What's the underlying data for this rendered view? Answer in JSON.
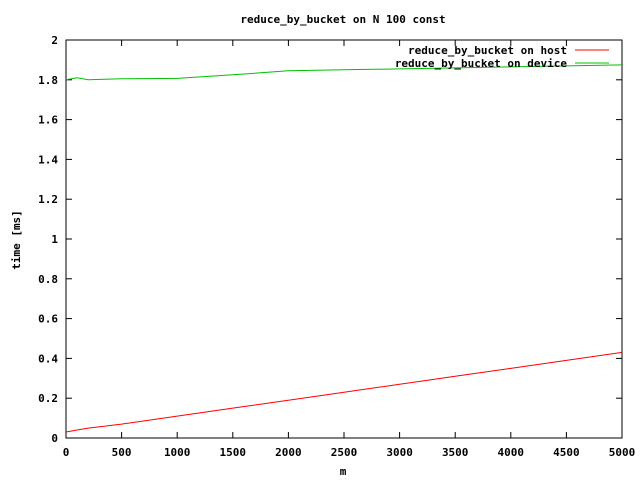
{
  "chart_data": {
    "type": "line",
    "title": "reduce_by_bucket on N 100 const",
    "xlabel": "m",
    "ylabel": "time [ms]",
    "xlim": [
      0,
      5000
    ],
    "ylim": [
      0,
      2
    ],
    "xticks": [
      0,
      500,
      1000,
      1500,
      2000,
      2500,
      3000,
      3500,
      4000,
      4500,
      5000
    ],
    "yticks": [
      0,
      0.2,
      0.4,
      0.6,
      0.8,
      1,
      1.2,
      1.4,
      1.6,
      1.8,
      2
    ],
    "xtick_labels": [
      "0",
      "500",
      "1000",
      "1500",
      "2000",
      "2500",
      "3000",
      "3500",
      "4000",
      "4500",
      "5000"
    ],
    "ytick_labels": [
      "0",
      "0.2",
      "0.4",
      "0.6",
      "0.8",
      "1",
      "1.2",
      "1.4",
      "1.6",
      "1.8",
      "2"
    ],
    "grid": false,
    "legend_position": "top-right",
    "series": [
      {
        "name": "reduce_by_bucket on host",
        "color": "#ff0000",
        "x": [
          0,
          100,
          200,
          500,
          1000,
          1500,
          2000,
          2500,
          3000,
          3500,
          4000,
          4500,
          5000
        ],
        "y": [
          0.03,
          0.04,
          0.05,
          0.07,
          0.11,
          0.15,
          0.19,
          0.23,
          0.27,
          0.31,
          0.35,
          0.39,
          0.43
        ]
      },
      {
        "name": "reduce_by_bucket on device",
        "color": "#00c000",
        "x": [
          0,
          100,
          200,
          500,
          1000,
          1500,
          2000,
          2500,
          3000,
          3500,
          4000,
          4500,
          5000
        ],
        "y": [
          1.8,
          1.81,
          1.8,
          1.805,
          1.807,
          1.825,
          1.845,
          1.85,
          1.855,
          1.86,
          1.865,
          1.87,
          1.875
        ]
      }
    ]
  }
}
